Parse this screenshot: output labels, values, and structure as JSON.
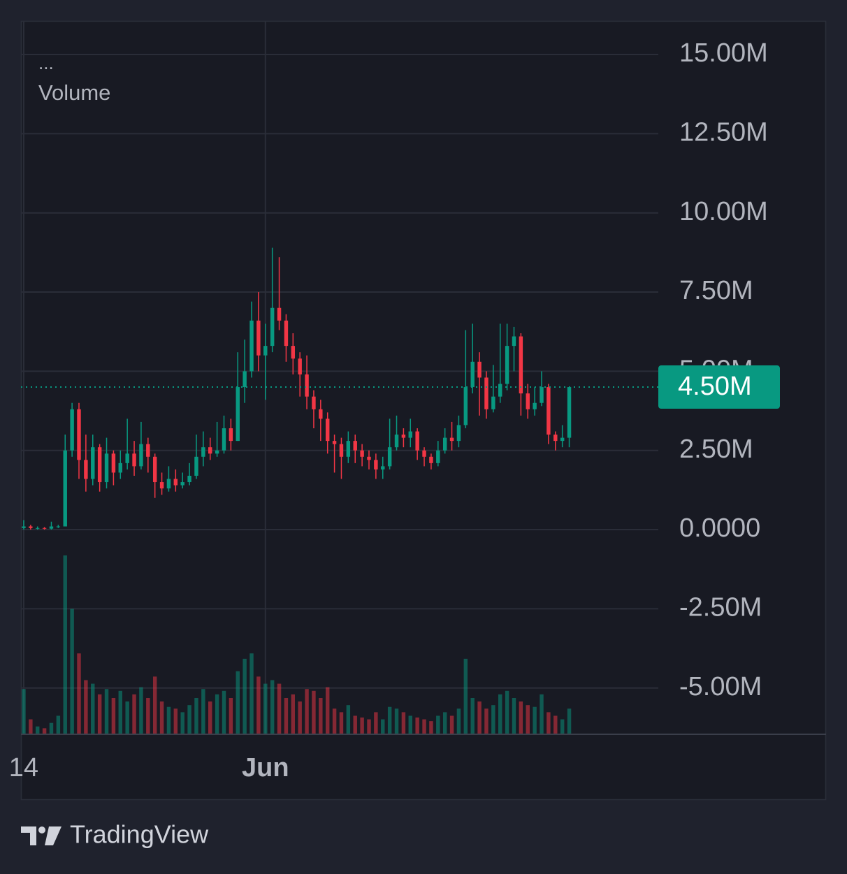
{
  "chart_data": {
    "type": "candlestick",
    "legend": {
      "dots": "...",
      "label": "Volume"
    },
    "brand": "TradingView",
    "up_color": "#089981",
    "down_color": "#f23645",
    "grid": true,
    "ylim": [
      -6.44,
      16.06
    ],
    "yticks": [
      {
        "value": 15,
        "label": "15.00M"
      },
      {
        "value": 12.5,
        "label": "12.50M"
      },
      {
        "value": 10,
        "label": "10.00M"
      },
      {
        "value": 7.5,
        "label": "7.50M"
      },
      {
        "value": 5,
        "label": "5.00M"
      },
      {
        "value": 2.5,
        "label": "2.50M"
      },
      {
        "value": 0,
        "label": "0.0000"
      },
      {
        "value": -2.5,
        "label": "-2.50M"
      },
      {
        "value": -5,
        "label": "-5.00M"
      }
    ],
    "xlim": [
      -0.4,
      91.9
    ],
    "xticks": [
      {
        "value": 0,
        "label": "14"
      },
      {
        "value": 35,
        "label": "Jun"
      }
    ],
    "price_line": {
      "value": 4.5,
      "label": "4.50M"
    },
    "open": [
      0.05,
      0.1,
      0.05,
      0.05,
      0.03,
      0.1,
      0.1,
      2.5,
      3.8,
      2.2,
      1.6,
      2.6,
      1.5,
      2.4,
      1.8,
      2.1,
      2.4,
      2.0,
      2.7,
      2.3,
      1.5,
      1.3,
      1.6,
      1.4,
      1.5,
      1.7,
      2.3,
      2.6,
      2.4,
      2.5,
      3.2,
      2.8,
      4.5,
      5.0,
      6.6,
      5.5,
      5.8,
      7.0,
      6.6,
      5.8,
      5.4,
      4.9,
      4.2,
      3.8,
      3.5,
      2.8,
      2.7,
      2.3,
      2.8,
      2.5,
      2.3,
      2.2,
      1.9,
      2.0,
      2.6,
      3.0,
      2.9,
      3.1,
      2.5,
      2.3,
      2.1,
      2.5,
      2.9,
      2.8,
      3.3,
      4.5,
      5.3,
      4.8,
      3.8,
      4.2,
      4.6,
      5.8,
      6.1,
      4.3,
      3.8,
      4.0,
      4.5,
      3.0,
      2.8,
      2.9
    ],
    "high": [
      0.3,
      0.15,
      0.1,
      0.08,
      0.25,
      0.15,
      3.0,
      4.0,
      4.0,
      3.0,
      3.0,
      2.7,
      2.9,
      2.5,
      2.5,
      3.5,
      2.8,
      3.4,
      2.9,
      2.4,
      1.8,
      2.0,
      1.9,
      1.8,
      2.1,
      3.0,
      3.1,
      2.9,
      3.4,
      3.6,
      3.5,
      5.6,
      6.0,
      7.2,
      7.5,
      6.5,
      8.9,
      8.6,
      6.8,
      6.2,
      5.6,
      5.5,
      4.4,
      4.1,
      3.7,
      3.0,
      2.9,
      3.1,
      3.0,
      2.7,
      2.5,
      2.4,
      2.3,
      3.5,
      3.6,
      3.2,
      3.5,
      3.2,
      2.6,
      2.4,
      2.8,
      3.2,
      3.4,
      3.6,
      6.3,
      6.5,
      5.6,
      5.0,
      5.2,
      6.5,
      6.5,
      6.4,
      6.2,
      4.6,
      4.5,
      5.0,
      4.6,
      3.1,
      3.3,
      4.5
    ],
    "low": [
      0.0,
      0.0,
      0.0,
      0.0,
      0.0,
      0.05,
      0.1,
      2.3,
      1.6,
      1.2,
      1.4,
      1.2,
      1.3,
      1.4,
      1.6,
      1.9,
      1.7,
      1.9,
      1.8,
      1.0,
      1.1,
      1.2,
      1.2,
      1.3,
      1.4,
      1.6,
      2.0,
      2.2,
      2.3,
      2.4,
      2.5,
      2.8,
      4.0,
      4.8,
      5.0,
      4.1,
      5.6,
      6.3,
      5.3,
      4.9,
      4.2,
      3.8,
      3.2,
      2.8,
      2.4,
      1.8,
      1.6,
      2.1,
      2.1,
      2.0,
      1.9,
      1.6,
      1.6,
      1.9,
      2.5,
      2.6,
      2.6,
      2.2,
      2.0,
      1.9,
      2.0,
      2.4,
      2.5,
      2.6,
      3.2,
      4.3,
      3.6,
      3.5,
      3.7,
      4.0,
      4.4,
      5.0,
      3.6,
      3.5,
      3.6,
      3.9,
      2.7,
      2.5,
      2.6,
      2.6
    ],
    "close": [
      0.1,
      0.05,
      0.05,
      0.03,
      0.1,
      0.1,
      2.5,
      3.8,
      2.2,
      1.6,
      2.6,
      1.5,
      2.4,
      1.8,
      2.1,
      2.4,
      2.0,
      2.7,
      2.3,
      1.5,
      1.3,
      1.6,
      1.4,
      1.5,
      1.7,
      2.3,
      2.6,
      2.4,
      2.5,
      3.2,
      2.8,
      4.5,
      5.0,
      6.6,
      5.5,
      5.8,
      7.0,
      6.6,
      5.8,
      5.4,
      4.9,
      4.2,
      3.8,
      3.5,
      2.8,
      2.7,
      2.3,
      2.8,
      2.5,
      2.3,
      2.2,
      1.9,
      2.0,
      2.6,
      3.0,
      2.9,
      3.1,
      2.5,
      2.3,
      2.1,
      2.5,
      2.9,
      2.8,
      3.3,
      4.5,
      5.3,
      4.8,
      3.8,
      4.2,
      4.6,
      5.8,
      6.1,
      4.3,
      3.8,
      4.0,
      4.5,
      3.0,
      2.8,
      2.9,
      4.5
    ],
    "y2lim": [
      0,
      100
    ],
    "volume": [
      25,
      8,
      4,
      3,
      6,
      10,
      100,
      70,
      45,
      30,
      28,
      22,
      25,
      20,
      24,
      18,
      22,
      26,
      20,
      32,
      18,
      15,
      14,
      12,
      16,
      20,
      25,
      18,
      22,
      24,
      20,
      35,
      42,
      45,
      32,
      28,
      30,
      28,
      20,
      22,
      18,
      25,
      24,
      20,
      26,
      14,
      12,
      16,
      10,
      9,
      8,
      12,
      8,
      15,
      14,
      12,
      10,
      9,
      8,
      7,
      10,
      12,
      10,
      14,
      42,
      20,
      18,
      14,
      16,
      22,
      24,
      20,
      18,
      16,
      15,
      22,
      12,
      10,
      8,
      14
    ]
  }
}
